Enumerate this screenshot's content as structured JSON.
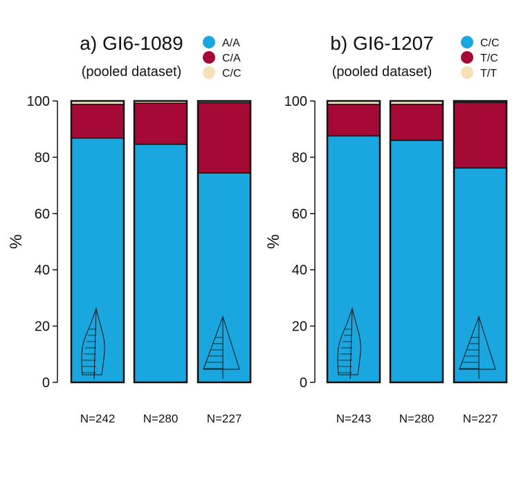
{
  "chart_data": [
    {
      "type": "bar",
      "stacked": true,
      "title": "a) GI6-1089",
      "subtitle": "(pooled dataset)",
      "ylabel": "%",
      "ylim": [
        0,
        100
      ],
      "yticks": [
        0,
        20,
        40,
        60,
        80,
        100
      ],
      "categories": [
        "N=242",
        "N=280",
        "N=227"
      ],
      "leaf_icons": [
        "narrow-striped-leaf-icon",
        "",
        "wide-striped-leaf-icon"
      ],
      "series": [
        {
          "name": "A/A",
          "color": "#1aa6df",
          "values": [
            86.8,
            84.6,
            74.4
          ]
        },
        {
          "name": "C/A",
          "color": "#a50a36",
          "values": [
            12.0,
            14.6,
            25.0
          ]
        },
        {
          "name": "C/C",
          "color": "#f6e0b5",
          "values": [
            1.2,
            0.8,
            0.6
          ]
        }
      ],
      "legend_position": "top-right"
    },
    {
      "type": "bar",
      "stacked": true,
      "title": "b) GI6-1207",
      "subtitle": "(pooled dataset)",
      "ylabel": "%",
      "ylim": [
        0,
        100
      ],
      "yticks": [
        0,
        20,
        40,
        60,
        80,
        100
      ],
      "categories": [
        "N=243",
        "N=280",
        "N=227"
      ],
      "leaf_icons": [
        "narrow-striped-leaf-icon",
        "",
        "wide-striped-leaf-icon"
      ],
      "series": [
        {
          "name": "C/C",
          "color": "#1aa6df",
          "values": [
            87.6,
            86.0,
            76.2
          ]
        },
        {
          "name": "T/C",
          "color": "#a50a36",
          "values": [
            11.2,
            12.8,
            23.3
          ]
        },
        {
          "name": "T/T",
          "color": "#f6e0b5",
          "values": [
            1.2,
            1.2,
            0.5
          ]
        }
      ],
      "legend_position": "top-right"
    }
  ]
}
